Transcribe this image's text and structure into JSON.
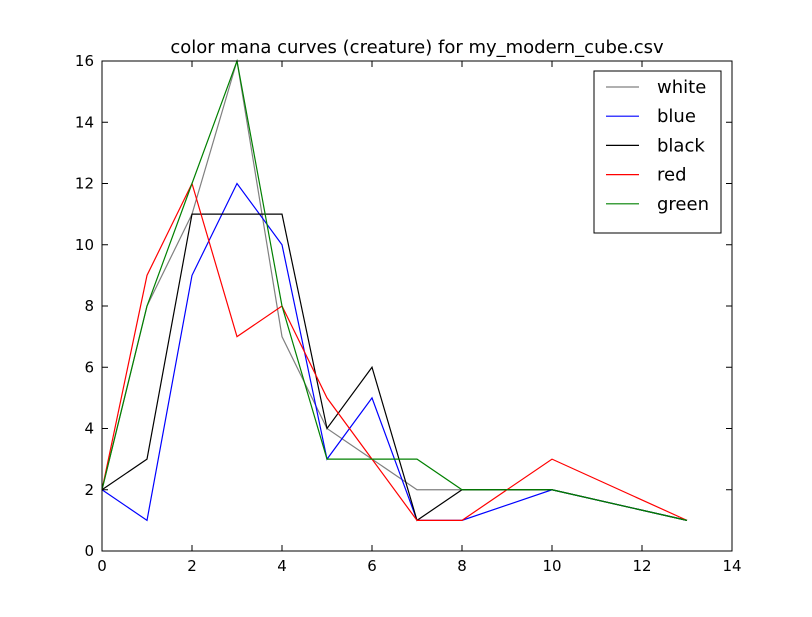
{
  "chart_data": {
    "type": "line",
    "title": "color mana curves (creature) for my_modern_cube.csv",
    "xlabel": "",
    "ylabel": "",
    "xlim": [
      0,
      14
    ],
    "ylim": [
      0,
      16
    ],
    "xticks": [
      0,
      2,
      4,
      6,
      8,
      10,
      12,
      14
    ],
    "yticks": [
      0,
      2,
      4,
      6,
      8,
      10,
      12,
      14,
      16
    ],
    "grid": false,
    "legend_position": "top-right",
    "series": [
      {
        "name": "white",
        "color": "#808080",
        "x": [
          0,
          1,
          2,
          3,
          4,
          5,
          6,
          7,
          8,
          10,
          13
        ],
        "values": [
          2,
          8,
          11,
          16,
          7,
          4,
          3,
          2,
          2,
          2,
          1
        ]
      },
      {
        "name": "blue",
        "color": "#0000ff",
        "x": [
          0,
          1,
          2,
          3,
          4,
          5,
          6,
          7,
          8,
          10,
          13
        ],
        "values": [
          2,
          1,
          9,
          12,
          10,
          3,
          5,
          1,
          1,
          2,
          1
        ]
      },
      {
        "name": "black",
        "color": "#000000",
        "x": [
          0,
          1,
          2,
          3,
          4,
          5,
          6,
          7,
          8,
          10,
          13
        ],
        "values": [
          2,
          3,
          11,
          11,
          11,
          4,
          6,
          1,
          2,
          2,
          1
        ]
      },
      {
        "name": "red",
        "color": "#ff0000",
        "x": [
          0,
          1,
          2,
          3,
          4,
          5,
          6,
          7,
          8,
          10,
          13
        ],
        "values": [
          2,
          9,
          12,
          7,
          8,
          5,
          3,
          1,
          1,
          3,
          1
        ]
      },
      {
        "name": "green",
        "color": "#008000",
        "x": [
          0,
          1,
          2,
          3,
          4,
          5,
          6,
          7,
          8,
          10,
          13
        ],
        "values": [
          2,
          8,
          12,
          16,
          8,
          3,
          3,
          3,
          2,
          2,
          1
        ]
      }
    ]
  }
}
